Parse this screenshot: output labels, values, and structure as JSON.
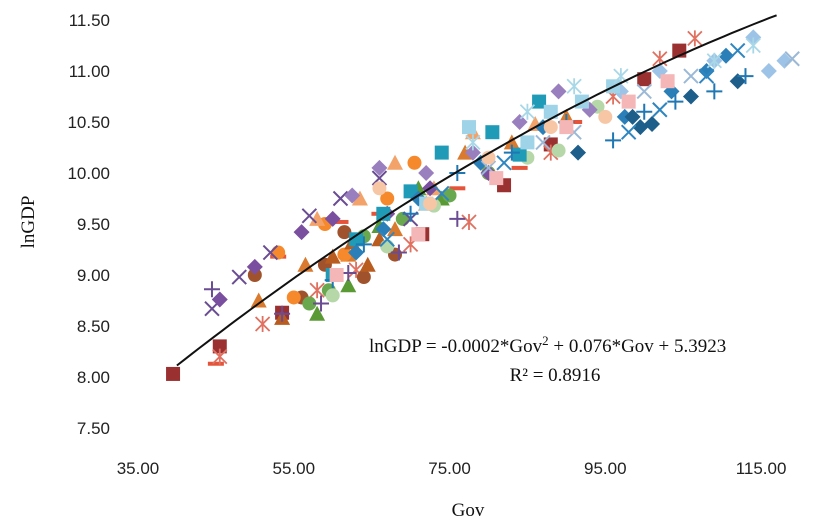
{
  "chart_data": {
    "type": "scatter",
    "xlabel": "Gov",
    "ylabel": "lnGDP",
    "xlim": [
      35,
      120
    ],
    "ylim": [
      7.5,
      11.5
    ],
    "grid": false,
    "x_ticks": [
      "35.00",
      "55.00",
      "75.00",
      "95.00",
      "115.00"
    ],
    "y_ticks": [
      "7.50",
      "8.00",
      "8.50",
      "9.00",
      "9.50",
      "10.00",
      "10.50",
      "11.00",
      "11.50"
    ],
    "trendline": {
      "type": "polynomial",
      "a": -0.0002,
      "b": 0.076,
      "c": 5.3923,
      "x_range": [
        40,
        117
      ],
      "equation_prefix": "lnGDP = -0.0002*Gov",
      "equation_sup": "2",
      "equation_suffix": " + 0.076*Gov + 5.3923",
      "r2_label": "R² = 0.8916"
    },
    "series": [
      {
        "color": "#9b3030",
        "marker": "square",
        "points": [
          [
            39.5,
            8.03
          ],
          [
            45.5,
            8.3
          ],
          [
            53.5,
            8.63
          ],
          [
            71.5,
            9.4
          ],
          [
            82,
            9.88
          ],
          [
            88,
            10.28
          ],
          [
            100,
            10.92
          ],
          [
            104.5,
            11.2
          ]
        ]
      },
      {
        "color": "#e4543a",
        "marker": "dash",
        "points": [
          [
            45,
            8.13
          ],
          [
            53,
            9.18
          ],
          [
            61,
            9.52
          ],
          [
            66,
            9.6
          ],
          [
            76,
            9.85
          ],
          [
            84,
            10.05
          ],
          [
            91,
            10.5
          ]
        ]
      },
      {
        "color": "#e07060",
        "marker": "asterisk",
        "points": [
          [
            45.5,
            8.2
          ],
          [
            51,
            8.52
          ],
          [
            58,
            8.85
          ],
          [
            63,
            9.05
          ],
          [
            70,
            9.3
          ],
          [
            77.5,
            9.52
          ],
          [
            88,
            10.2
          ],
          [
            96,
            10.75
          ],
          [
            102,
            11.12
          ],
          [
            106.5,
            11.32
          ]
        ]
      },
      {
        "color": "#d97a2e",
        "marker": "triangle",
        "points": [
          [
            50.5,
            8.75
          ],
          [
            56.5,
            9.1
          ],
          [
            62,
            9.2
          ],
          [
            68,
            9.45
          ],
          [
            72,
            9.7
          ],
          [
            77,
            10.2
          ],
          [
            83,
            10.3
          ],
          [
            90,
            10.55
          ]
        ]
      },
      {
        "color": "#a0522d",
        "marker": "circle",
        "points": [
          [
            50,
            9.0
          ],
          [
            56,
            8.78
          ],
          [
            59,
            9.1
          ],
          [
            61.5,
            9.42
          ],
          [
            64,
            8.98
          ],
          [
            68,
            9.2
          ]
        ]
      },
      {
        "color": "#f5892b",
        "marker": "circle",
        "points": [
          [
            53,
            9.22
          ],
          [
            55,
            8.78
          ],
          [
            59,
            9.5
          ],
          [
            61.5,
            9.2
          ],
          [
            67,
            9.75
          ],
          [
            70.5,
            10.1
          ],
          [
            80,
            10.0
          ]
        ]
      },
      {
        "color": "#b85c20",
        "marker": "triangle",
        "points": [
          [
            53.5,
            8.58
          ],
          [
            60,
            9.18
          ],
          [
            62.5,
            9.32
          ],
          [
            64.5,
            9.1
          ],
          [
            66,
            9.35
          ]
        ]
      },
      {
        "color": "#f3a36a",
        "marker": "triangle",
        "points": [
          [
            58,
            9.55
          ],
          [
            63.5,
            9.75
          ],
          [
            68,
            10.1
          ],
          [
            73,
            9.85
          ],
          [
            78,
            10.4
          ],
          [
            86,
            10.48
          ]
        ]
      },
      {
        "color": "#5a9a35",
        "marker": "triangle",
        "points": [
          [
            58,
            8.62
          ],
          [
            62,
            8.9
          ],
          [
            66,
            9.48
          ],
          [
            71,
            9.85
          ],
          [
            74,
            9.75
          ]
        ]
      },
      {
        "color": "#6aa84f",
        "marker": "circle",
        "points": [
          [
            57,
            8.72
          ],
          [
            59.5,
            8.85
          ],
          [
            64,
            9.38
          ],
          [
            69,
            9.55
          ],
          [
            75,
            9.78
          ],
          [
            80,
            10.0
          ]
        ]
      },
      {
        "color": "#b6d7a8",
        "marker": "circle",
        "points": [
          [
            60,
            8.8
          ],
          [
            67,
            9.28
          ],
          [
            73,
            9.68
          ],
          [
            85,
            10.15
          ],
          [
            89,
            10.22
          ],
          [
            94,
            10.65
          ]
        ]
      },
      {
        "color": "#6a4c93",
        "marker": "x",
        "points": [
          [
            44.5,
            8.67
          ],
          [
            48,
            8.98
          ],
          [
            52,
            9.22
          ],
          [
            57,
            9.58
          ],
          [
            61,
            9.75
          ],
          [
            66,
            9.95
          ],
          [
            70,
            9.55
          ]
        ]
      },
      {
        "color": "#6a4c93",
        "marker": "plus",
        "points": [
          [
            44.5,
            8.86
          ],
          [
            53.5,
            8.62
          ],
          [
            58.5,
            8.72
          ],
          [
            62,
            9.02
          ],
          [
            68.5,
            9.22
          ],
          [
            76,
            9.55
          ]
        ]
      },
      {
        "color": "#7a4fa0",
        "marker": "diamond",
        "points": [
          [
            45.5,
            8.76
          ],
          [
            50,
            9.08
          ],
          [
            56,
            9.42
          ],
          [
            60,
            9.55
          ],
          [
            67,
            9.6
          ],
          [
            72.5,
            9.85
          ],
          [
            80,
            10.0
          ]
        ]
      },
      {
        "color": "#9a7fbf",
        "marker": "diamond",
        "points": [
          [
            62.5,
            9.78
          ],
          [
            66,
            10.05
          ],
          [
            72,
            10.0
          ],
          [
            78,
            10.2
          ],
          [
            84,
            10.5
          ],
          [
            89,
            10.8
          ],
          [
            93,
            10.62
          ]
        ]
      },
      {
        "color": "#1f9bb8",
        "marker": "square",
        "points": [
          [
            60,
            9.0
          ],
          [
            63,
            9.35
          ],
          [
            66.5,
            9.6
          ],
          [
            70,
            9.82
          ],
          [
            74,
            10.2
          ],
          [
            80.5,
            10.4
          ],
          [
            84,
            10.18
          ],
          [
            86.5,
            10.7
          ]
        ]
      },
      {
        "color": "#2b7fb8",
        "marker": "diamond",
        "points": [
          [
            63,
            9.22
          ],
          [
            66.5,
            9.45
          ],
          [
            71,
            9.75
          ],
          [
            79,
            10.1
          ],
          [
            87,
            10.45
          ],
          [
            97.5,
            10.55
          ],
          [
            103.5,
            10.8
          ],
          [
            108,
            11.0
          ],
          [
            110.5,
            11.15
          ]
        ]
      },
      {
        "color": "#1d5f8a",
        "marker": "diamond",
        "points": [
          [
            91.5,
            10.2
          ],
          [
            98.5,
            10.55
          ],
          [
            99.5,
            10.45
          ],
          [
            101,
            10.48
          ],
          [
            106,
            10.75
          ],
          [
            112,
            10.9
          ]
        ]
      },
      {
        "color": "#1f77b4",
        "marker": "plus",
        "points": [
          [
            60,
            8.95
          ],
          [
            64,
            9.3
          ],
          [
            70,
            9.6
          ],
          [
            76,
            10.0
          ],
          [
            83,
            10.2
          ],
          [
            90,
            10.5
          ],
          [
            96,
            10.32
          ],
          [
            100,
            10.6
          ],
          [
            104,
            10.7
          ],
          [
            109,
            10.8
          ],
          [
            113,
            10.95
          ]
        ]
      },
      {
        "color": "#2e86c1",
        "marker": "x",
        "points": [
          [
            67,
            9.35
          ],
          [
            74,
            9.8
          ],
          [
            82,
            10.1
          ],
          [
            98,
            10.4
          ],
          [
            102,
            10.62
          ],
          [
            108,
            10.95
          ],
          [
            112,
            11.2
          ]
        ]
      },
      {
        "color": "#9dc3e6",
        "marker": "diamond",
        "points": [
          [
            97,
            10.8
          ],
          [
            102,
            11.0
          ],
          [
            109,
            11.1
          ],
          [
            114,
            11.33
          ],
          [
            116,
            11.0
          ],
          [
            118,
            11.1
          ]
        ]
      },
      {
        "color": "#9fd4e8",
        "marker": "square",
        "points": [
          [
            72,
            9.7
          ],
          [
            77.5,
            10.45
          ],
          [
            85,
            10.3
          ],
          [
            88,
            10.6
          ],
          [
            92,
            10.7
          ],
          [
            96,
            10.85
          ]
        ]
      },
      {
        "color": "#a8d8e8",
        "marker": "asterisk",
        "points": [
          [
            78,
            10.3
          ],
          [
            85,
            10.6
          ],
          [
            91,
            10.85
          ],
          [
            97,
            10.95
          ],
          [
            109,
            11.1
          ],
          [
            114,
            11.25
          ]
        ]
      },
      {
        "color": "#9bb9d7",
        "marker": "x",
        "points": [
          [
            80,
            10.05
          ],
          [
            87,
            10.3
          ],
          [
            91,
            10.4
          ],
          [
            100,
            10.8
          ],
          [
            106,
            10.95
          ],
          [
            119,
            11.12
          ]
        ]
      },
      {
        "color": "#f4b6b6",
        "marker": "square",
        "points": [
          [
            60.5,
            9.0
          ],
          [
            71,
            9.4
          ],
          [
            81,
            9.95
          ],
          [
            90,
            10.45
          ],
          [
            98,
            10.7
          ],
          [
            103,
            10.9
          ]
        ]
      },
      {
        "color": "#f7c6a5",
        "marker": "circle",
        "points": [
          [
            66,
            9.85
          ],
          [
            72.5,
            9.7
          ],
          [
            80,
            10.15
          ],
          [
            88,
            10.45
          ],
          [
            95,
            10.55
          ]
        ]
      }
    ]
  }
}
